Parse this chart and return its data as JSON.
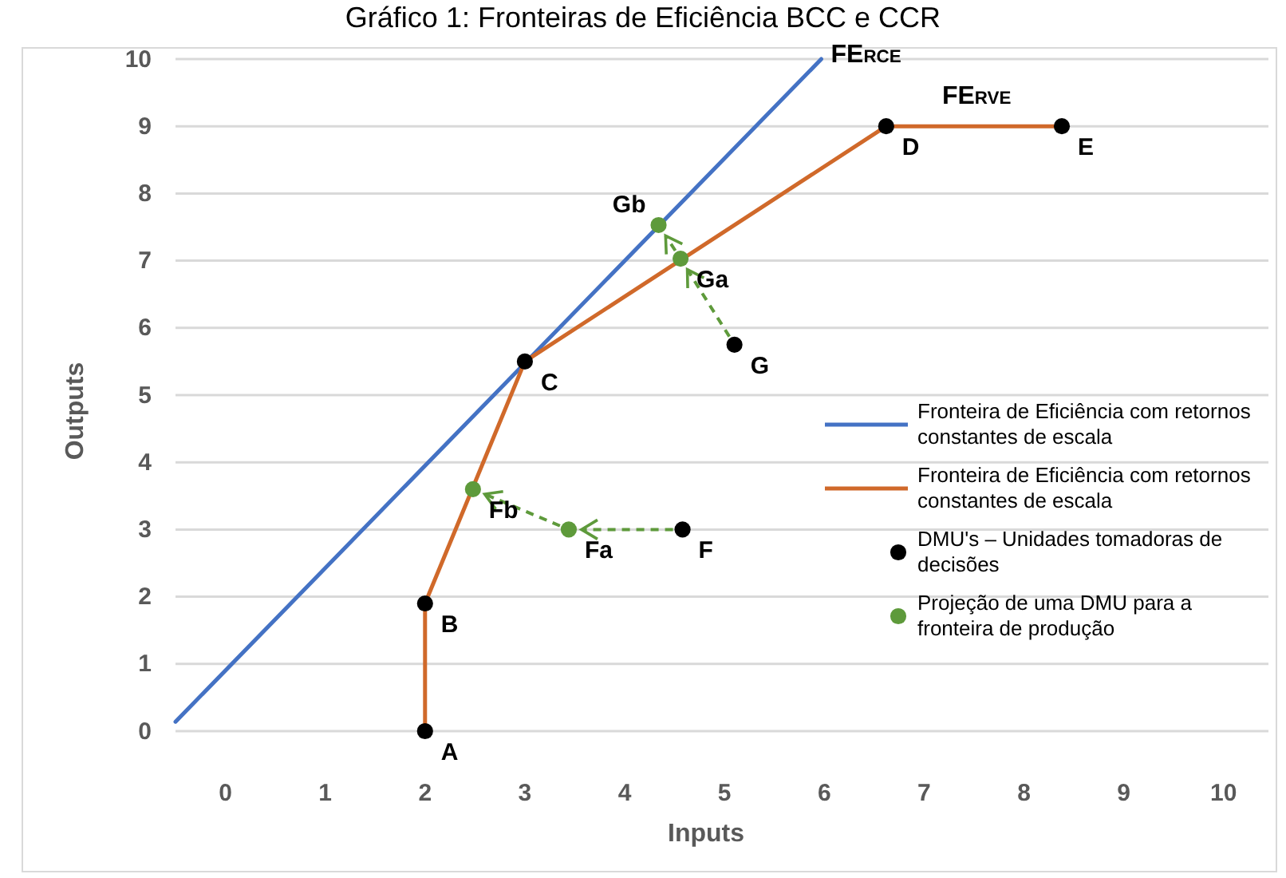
{
  "chart_data": {
    "type": "line",
    "title": "Gráfico 1: Fronteiras de Eficiência BCC e CCR",
    "xlabel": "Inputs",
    "ylabel": "Outputs",
    "xlim": [
      -0.5,
      10.45
    ],
    "ylim": [
      0,
      10
    ],
    "xticks": [
      0,
      1,
      2,
      3,
      4,
      5,
      6,
      7,
      8,
      9,
      10
    ],
    "yticks": [
      0,
      1,
      2,
      3,
      4,
      5,
      6,
      7,
      8,
      9,
      10
    ],
    "grid": "y",
    "legend": "right",
    "series": [
      {
        "name": "Fronteira de Eficiência com retornos constantes de escala",
        "color": "#4472c4",
        "x": [
          -0.5,
          5.97
        ],
        "values": [
          0.14,
          10
        ]
      },
      {
        "name": "Fronteira de Eficiência com retornos constantes de escala",
        "color": "#d0692a",
        "x": [
          2,
          2,
          3,
          6.62,
          8.38
        ],
        "values": [
          0,
          1.9,
          5.5,
          9,
          9
        ]
      },
      {
        "name": "DMU's – Unidades tomadoras de decisões",
        "type": "scatter",
        "marker": "circle",
        "color": "#000000",
        "x": [
          2,
          2,
          3,
          6.62,
          8.38,
          4.58,
          5.1
        ],
        "values": [
          0,
          1.9,
          5.5,
          9,
          9,
          3,
          5.75
        ]
      },
      {
        "name": "Projeção de uma DMU para a fronteira de produção",
        "type": "scatter",
        "marker": "circle",
        "color": "#5e9a3b",
        "x": [
          2.48,
          3.44,
          4.56,
          4.34
        ],
        "values": [
          3.6,
          3,
          7.03,
          7.53
        ]
      }
    ],
    "annotations": [
      {
        "text": "A",
        "x": 2,
        "y": 0
      },
      {
        "text": "B",
        "x": 2,
        "y": 1.9
      },
      {
        "text": "C",
        "x": 3,
        "y": 5.5
      },
      {
        "text": "D",
        "x": 6.62,
        "y": 9
      },
      {
        "text": "E",
        "x": 8.38,
        "y": 9
      },
      {
        "text": "F",
        "x": 4.58,
        "y": 3
      },
      {
        "text": "G",
        "x": 5.1,
        "y": 5.75
      },
      {
        "text": "Fb",
        "x": 2.48,
        "y": 3.6
      },
      {
        "text": "Fa",
        "x": 3.44,
        "y": 3
      },
      {
        "text": "Ga",
        "x": 4.56,
        "y": 7.03
      },
      {
        "text": "Gb",
        "x": 4.34,
        "y": 7.53
      },
      "FE$_{RCE}$",
      "FE$_{RVE}$"
    ]
  }
}
